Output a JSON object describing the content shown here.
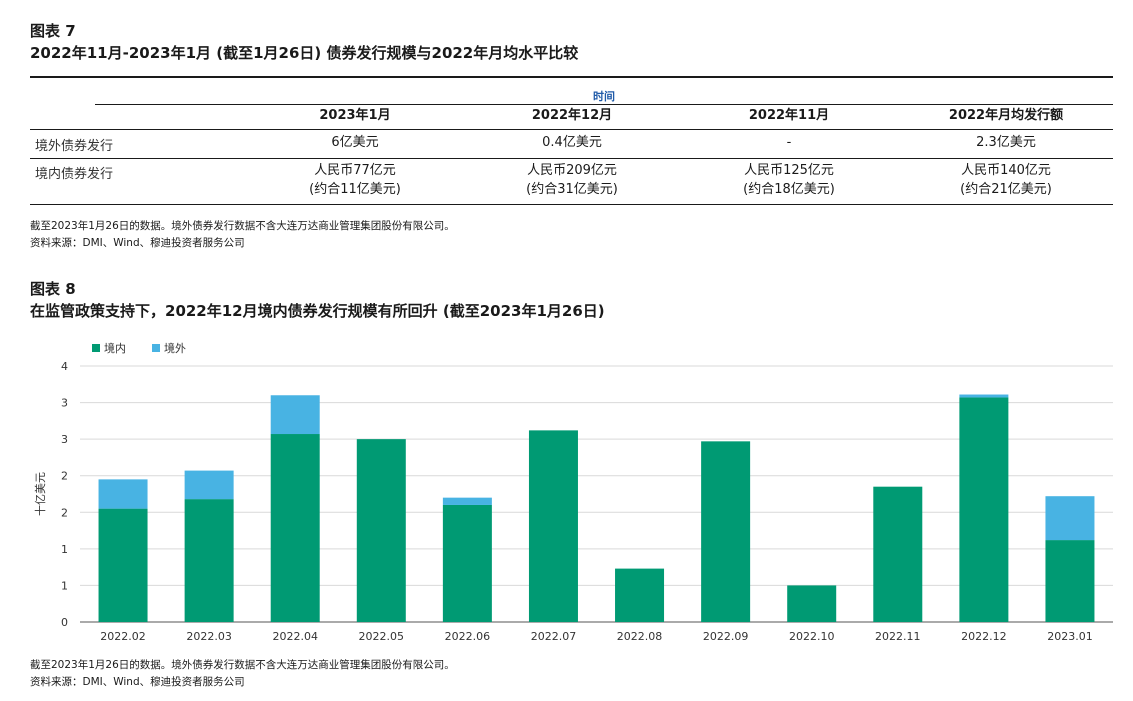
{
  "fig7": {
    "label": "图表 7",
    "title": "2022年11月-2023年1月 (截至1月26日) 债券发行规模与2022年月均水平比较",
    "time_header": "时间",
    "columns": [
      "2023年1月",
      "2022年12月",
      "2022年11月",
      "2022年月均发行额"
    ],
    "rows": [
      {
        "label": "境外债券发行",
        "cells": [
          [
            "6亿美元"
          ],
          [
            "0.4亿美元"
          ],
          [
            "-"
          ],
          [
            "2.3亿美元"
          ]
        ]
      },
      {
        "label": "境内债券发行",
        "cells": [
          [
            "人民币77亿元",
            "(约合11亿美元)"
          ],
          [
            "人民币209亿元",
            "(约合31亿美元)"
          ],
          [
            "人民币125亿元",
            "(约合18亿美元)"
          ],
          [
            "人民币140亿元",
            "(约合21亿美元)"
          ]
        ]
      }
    ],
    "note": "截至2023年1月26日的数据。境外债券发行数据不含大连万达商业管理集团股份有限公司。",
    "source": "资料来源：DMI、Wind、穆迪投资者服务公司"
  },
  "fig8": {
    "label": "图表 8",
    "title": "在监管政策支持下，2022年12月境内债券发行规模有所回升 (截至2023年1月26日)",
    "note": "截至2023年1月26日的数据。境外债券发行数据不含大连万达商业管理集团股份有限公司。",
    "source": "资料来源：DMI、Wind、穆迪投资者服务公司"
  },
  "chart_data": {
    "type": "bar",
    "stacked": true,
    "categories": [
      "2022.02",
      "2022.03",
      "2022.04",
      "2022.05",
      "2022.06",
      "2022.07",
      "2022.08",
      "2022.09",
      "2022.10",
      "2022.11",
      "2022.12",
      "2023.01"
    ],
    "series": [
      {
        "name": "境内",
        "color": "#009a73",
        "values": [
          1.55,
          1.68,
          2.57,
          2.5,
          1.6,
          2.62,
          0.73,
          2.47,
          0.5,
          1.85,
          3.07,
          1.12
        ]
      },
      {
        "name": "境外",
        "color": "#48b3e3",
        "values": [
          0.4,
          0.39,
          0.53,
          0,
          0.1,
          0,
          0,
          0,
          0,
          0,
          0.04,
          0.6
        ]
      }
    ],
    "ylabel": "十亿美元",
    "yticks": [
      "0",
      "1",
      "1",
      "2",
      "2",
      "3",
      "3",
      "4"
    ],
    "ylim": [
      0,
      3.5
    ],
    "legend": "top-left",
    "grid": true
  }
}
